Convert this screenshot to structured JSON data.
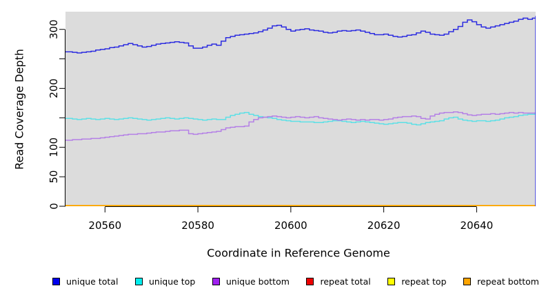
{
  "figure": {
    "background": "#ffffff",
    "plot_background": "#DCDCDC",
    "axis_color": "#000000"
  },
  "chart_data": {
    "type": "line",
    "subtype": "step",
    "title": "",
    "xlabel": "Coordinate in Reference Genome",
    "ylabel": "Read Coverage Depth",
    "xlim": [
      20551.5,
      20652.7
    ],
    "ylim": [
      0,
      330
    ],
    "x_ticks": [
      20560,
      20580,
      20600,
      20620,
      20640
    ],
    "x_tick_labels": [
      "20560",
      "20580",
      "20600",
      "20620",
      "20640"
    ],
    "y_ticks": [
      0,
      50,
      100,
      150,
      200,
      250,
      300
    ],
    "y_tick_labels": [
      "0",
      "50",
      "100",
      "",
      "200",
      "",
      "300"
    ],
    "grid": false,
    "legend_position": "bottom",
    "x_start": 20552,
    "x_step": 1,
    "series": [
      {
        "name": "unique total",
        "color": "#0000EE",
        "line_color": "#2B2BE0",
        "drop_to_zero_at_end": true,
        "values": [
          262,
          261,
          260,
          261,
          262,
          263,
          265,
          266,
          267,
          269,
          270,
          272,
          274,
          276,
          274,
          272,
          270,
          271,
          273,
          275,
          276,
          277,
          278,
          279,
          278,
          277,
          272,
          268,
          268,
          270,
          273,
          275,
          273,
          280,
          286,
          288,
          290,
          291,
          292,
          293,
          294,
          296,
          299,
          302,
          306,
          307,
          304,
          300,
          297,
          299,
          300,
          301,
          299,
          298,
          297,
          295,
          294,
          295,
          297,
          298,
          297,
          298,
          299,
          297,
          295,
          293,
          291,
          291,
          292,
          290,
          288,
          287,
          288,
          290,
          291,
          294,
          297,
          295,
          292,
          291,
          290,
          292,
          296,
          300,
          305,
          312,
          316,
          313,
          308,
          304,
          302,
          304,
          306,
          308,
          310,
          312,
          314,
          317,
          319,
          317,
          319,
          322
        ]
      },
      {
        "name": "unique top",
        "color": "#00EEEE",
        "line_color": "#5CE0E6",
        "drop_to_zero_at_end": false,
        "values": [
          149,
          148,
          147,
          148,
          149,
          148,
          147,
          148,
          149,
          148,
          147,
          148,
          149,
          150,
          149,
          148,
          147,
          146,
          147,
          148,
          149,
          150,
          149,
          148,
          149,
          150,
          149,
          148,
          147,
          146,
          147,
          148,
          147,
          147,
          151,
          154,
          156,
          158,
          159,
          156,
          154,
          152,
          151,
          150,
          149,
          147,
          146,
          145,
          144,
          144,
          143,
          143,
          143,
          142,
          142,
          143,
          144,
          145,
          145,
          144,
          143,
          142,
          143,
          144,
          143,
          142,
          141,
          140,
          139,
          140,
          141,
          142,
          142,
          141,
          139,
          138,
          140,
          142,
          143,
          144,
          145,
          148,
          150,
          151,
          148,
          146,
          145,
          144,
          145,
          145,
          144,
          145,
          146,
          148,
          150,
          151,
          152,
          154,
          155,
          156,
          156,
          156
        ]
      },
      {
        "name": "unique bottom",
        "color": "#A020F0",
        "line_color": "#B47FE6",
        "drop_to_zero_at_end": false,
        "values": [
          112,
          113,
          113,
          114,
          114,
          115,
          115,
          116,
          117,
          118,
          119,
          120,
          121,
          122,
          122,
          123,
          123,
          124,
          125,
          126,
          126,
          127,
          128,
          128,
          129,
          129,
          123,
          122,
          123,
          124,
          125,
          126,
          127,
          130,
          133,
          134,
          135,
          135,
          136,
          143,
          147,
          150,
          151,
          152,
          153,
          152,
          151,
          150,
          151,
          152,
          151,
          150,
          151,
          152,
          150,
          149,
          148,
          147,
          146,
          147,
          148,
          147,
          146,
          147,
          146,
          147,
          147,
          146,
          147,
          148,
          150,
          151,
          152,
          152,
          153,
          152,
          149,
          148,
          153,
          156,
          158,
          159,
          159,
          160,
          159,
          157,
          155,
          154,
          155,
          156,
          156,
          157,
          156,
          157,
          158,
          159,
          158,
          159,
          158,
          158,
          158,
          158
        ]
      },
      {
        "name": "repeat total",
        "color": "#EE0000",
        "line_color": "#EE0000",
        "drop_to_zero_at_end": false,
        "values": [
          0
        ]
      },
      {
        "name": "repeat top",
        "color": "#FFFF00",
        "line_color": "#FFFF00",
        "drop_to_zero_at_end": false,
        "values": [
          0
        ]
      },
      {
        "name": "repeat bottom",
        "color": "#FFA500",
        "line_color": "#FFA500",
        "drop_to_zero_at_end": false,
        "values": [
          0
        ]
      }
    ]
  }
}
